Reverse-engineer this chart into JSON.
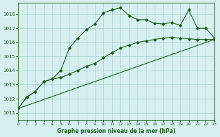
{
  "title": "Graphe pression niveau de la mer (hPa)",
  "background_color": "#d6f0f0",
  "grid_color": "#a8d0d0",
  "line_color": "#1a5c1a",
  "xlim": [
    0,
    23
  ],
  "ylim": [
    1010.5,
    1018.8
  ],
  "yticks": [
    1011,
    1012,
    1013,
    1014,
    1015,
    1016,
    1017,
    1018
  ],
  "xticks": [
    0,
    1,
    2,
    3,
    4,
    5,
    6,
    7,
    8,
    9,
    10,
    11,
    12,
    13,
    14,
    15,
    16,
    17,
    18,
    19,
    20,
    21,
    22,
    23
  ],
  "series1_x": [
    0,
    1,
    2,
    3,
    4,
    5,
    6,
    7,
    8,
    9,
    10,
    11,
    12,
    13,
    14,
    15,
    16,
    17,
    18,
    19,
    20,
    21,
    22,
    23
  ],
  "series1_y": [
    1011.3,
    1012.1,
    1012.5,
    1013.2,
    1013.4,
    1014.0,
    1015.6,
    1016.3,
    1016.9,
    1017.3,
    1018.1,
    1018.3,
    1018.45,
    1017.9,
    1017.6,
    1017.6,
    1017.35,
    1017.3,
    1017.4,
    1017.2,
    1018.3,
    1017.0,
    1017.0,
    1016.3
  ],
  "series2_x": [
    0,
    1,
    2,
    3,
    4,
    5,
    6,
    7,
    8,
    9,
    10,
    11,
    12,
    13,
    14,
    15,
    16,
    17,
    18,
    19,
    20,
    21,
    22,
    23
  ],
  "series2_y": [
    1011.3,
    1012.1,
    1012.5,
    1013.2,
    1013.4,
    1013.5,
    1013.75,
    1014.0,
    1014.3,
    1014.5,
    1014.9,
    1015.25,
    1015.6,
    1015.8,
    1016.0,
    1016.1,
    1016.2,
    1016.3,
    1016.35,
    1016.3,
    1016.25,
    1016.2,
    1016.2,
    1016.2
  ],
  "series3_x": [
    0,
    23
  ],
  "series3_y": [
    1011.3,
    1016.2
  ]
}
